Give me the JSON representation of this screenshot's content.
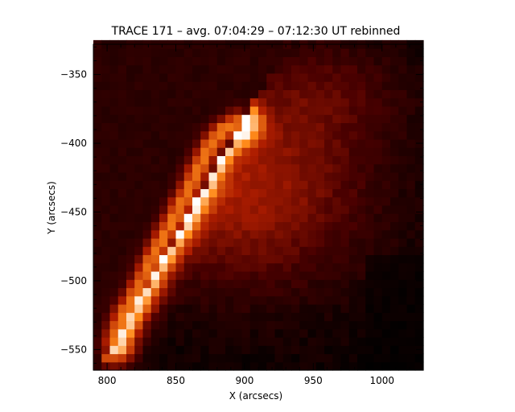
{
  "chart_data": {
    "type": "heatmap",
    "title": "TRACE 171 – avg. 07:04:29 – 07:12:30 UT rebinned",
    "xlabel": "X (arcsecs)",
    "ylabel": "Y (arcsecs)",
    "xlim": [
      790,
      1030
    ],
    "ylim": [
      -565,
      -328
    ],
    "x_ticks": [
      800,
      850,
      900,
      950,
      1000
    ],
    "y_ticks": [
      -350,
      -400,
      -450,
      -500,
      -550
    ],
    "x_minor_step": 10,
    "y_minor_step": 10,
    "colormap": "red-temperature (black → dark red → orange → white)",
    "colors": {
      "black": "#000000",
      "dark_red": "#4a0000",
      "red": "#b01e00",
      "orange": "#ff8a1a",
      "white": "#ffffff"
    },
    "pixel_size_arcsec": 6,
    "features": [
      {
        "name": "bright limb ridge",
        "path": [
          [
            805,
            -545
          ],
          [
            812,
            -525
          ],
          [
            820,
            -512
          ],
          [
            830,
            -490
          ],
          [
            840,
            -470
          ],
          [
            850,
            -452
          ],
          [
            860,
            -432
          ],
          [
            868,
            -415
          ],
          [
            876,
            -400
          ],
          [
            885,
            -390
          ],
          [
            895,
            -385
          ]
        ],
        "peak": 1.0
      },
      {
        "name": "loop arcade",
        "center": [
          900,
          -440
        ],
        "extent": [
          130,
          90
        ],
        "level": 0.35
      }
    ]
  }
}
